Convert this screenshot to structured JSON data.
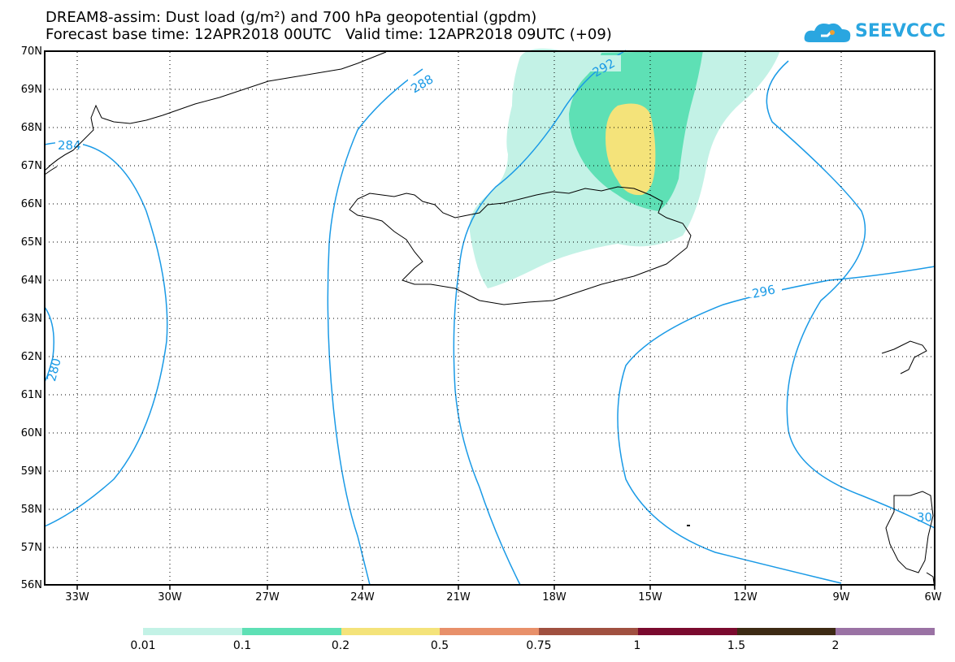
{
  "header": {
    "title_line1": "DREAM8-assim: Dust load (g/m²) and 700 hPa geopotential (gpdm)",
    "title_line2": "Forecast base time: 12APR2018 00UTC   Valid time: 12APR2018 09UTC (+09)"
  },
  "logo": {
    "text": "SEEVCCC",
    "icon": "cloud-logo-icon"
  },
  "map": {
    "lat_labels": [
      "70N",
      "69N",
      "68N",
      "67N",
      "66N",
      "65N",
      "64N",
      "63N",
      "62N",
      "61N",
      "60N",
      "59N",
      "58N",
      "57N",
      "56N"
    ],
    "lon_labels": [
      "33W",
      "30W",
      "27W",
      "24W",
      "21W",
      "18W",
      "15W",
      "12W",
      "9W",
      "6W"
    ],
    "contour_labels": [
      "288",
      "292",
      "284",
      "280",
      "296",
      "30"
    ],
    "dust_colors": {
      "low": "#c3f2e6",
      "mid": "#5ee0b5",
      "high": "#f4e37a"
    },
    "contour_color": "#1a9ae6",
    "coast_color": "#000000"
  },
  "legend": {
    "labels": [
      "0.01",
      "0.1",
      "0.2",
      "0.5",
      "0.75",
      "1",
      "1.5",
      "2"
    ],
    "colors": [
      "#c3f2e6",
      "#5ee0b5",
      "#f4e37a",
      "#e8906a",
      "#a05040",
      "#7a0a2e",
      "#3d2a14",
      "#9a72a4"
    ]
  }
}
